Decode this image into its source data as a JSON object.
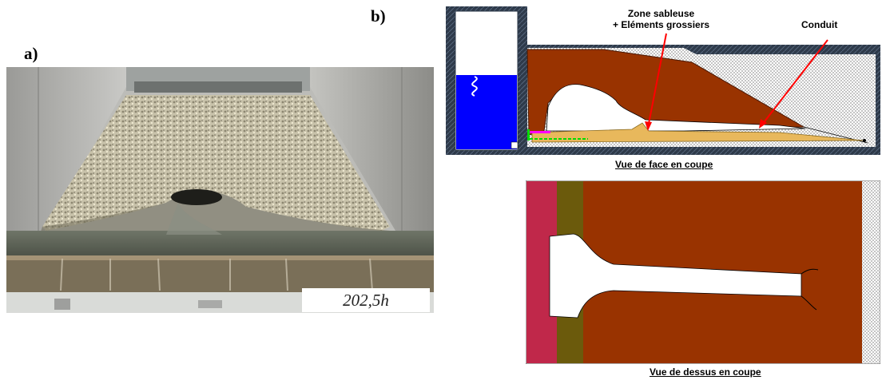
{
  "panels": {
    "a": "a)",
    "b": "b)"
  },
  "photo": {
    "time_label": "202,5h"
  },
  "annotations": {
    "zone_line1": "Zone sableuse",
    "zone_line2": "+ Eléments grossiers",
    "conduit": "Conduit"
  },
  "captions": {
    "face": "Vue de face en coupe",
    "dessus": "Vue de dessus en coupe"
  },
  "colors": {
    "embankment": "#993300",
    "sand_zone": "#e8b85c",
    "water": "#0000ff",
    "arrow": "#ff0000",
    "upstream_strip": "#c0284a",
    "filter_strip": "#6b5a0c"
  }
}
